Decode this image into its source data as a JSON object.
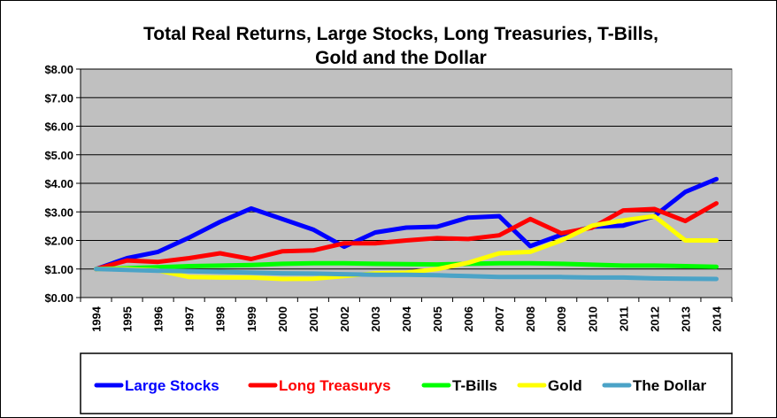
{
  "chart_data": {
    "type": "line",
    "title_line1": "Total Real Returns, Large Stocks, Long Treasuries, T-Bills,",
    "title_line2": "Gold and the Dollar",
    "ylim": [
      0,
      8
    ],
    "y_ticks": [
      "$0.00",
      "$1.00",
      "$2.00",
      "$3.00",
      "$4.00",
      "$5.00",
      "$6.00",
      "$7.00",
      "$8.00"
    ],
    "categories": [
      "1994",
      "1995",
      "1996",
      "1997",
      "1998",
      "1999",
      "2000",
      "2001",
      "2002",
      "2003",
      "2004",
      "2005",
      "2006",
      "2007",
      "2008",
      "2009",
      "2010",
      "2011",
      "2012",
      "2013",
      "2014"
    ],
    "grid": true,
    "plot_background": "#c0c0c0",
    "legend_position": "bottom",
    "series": [
      {
        "name": "Large Stocks",
        "color": "#0000ff",
        "label_color": "#0000ff",
        "values": [
          1.0,
          1.38,
          1.6,
          2.1,
          2.65,
          3.12,
          2.75,
          2.38,
          1.78,
          2.28,
          2.45,
          2.48,
          2.8,
          2.85,
          1.8,
          2.2,
          2.48,
          2.52,
          2.85,
          3.7,
          4.15
        ]
      },
      {
        "name": "Long Treasurys",
        "color": "#ff0000",
        "label_color": "#ff0000",
        "values": [
          1.0,
          1.3,
          1.25,
          1.38,
          1.55,
          1.35,
          1.62,
          1.65,
          1.9,
          1.9,
          2.0,
          2.08,
          2.05,
          2.18,
          2.75,
          2.25,
          2.45,
          3.05,
          3.1,
          2.68,
          3.3
        ]
      },
      {
        "name": "T-Bills",
        "color": "#00ff00",
        "label_color": "#000000",
        "values": [
          1.0,
          1.03,
          1.06,
          1.1,
          1.12,
          1.14,
          1.18,
          1.2,
          1.2,
          1.18,
          1.17,
          1.16,
          1.18,
          1.2,
          1.2,
          1.18,
          1.15,
          1.12,
          1.12,
          1.1,
          1.08
        ]
      },
      {
        "name": "Gold",
        "color": "#ffff00",
        "label_color": "#000000",
        "values": [
          1.0,
          1.0,
          0.95,
          0.72,
          0.7,
          0.7,
          0.65,
          0.66,
          0.75,
          0.85,
          0.87,
          1.0,
          1.22,
          1.55,
          1.6,
          2.0,
          2.52,
          2.7,
          2.85,
          2.0,
          2.0
        ]
      },
      {
        "name": "The Dollar",
        "color": "#4ba3c7",
        "label_color": "#000000",
        "values": [
          1.0,
          0.97,
          0.94,
          0.92,
          0.9,
          0.87,
          0.85,
          0.84,
          0.82,
          0.8,
          0.8,
          0.78,
          0.75,
          0.72,
          0.72,
          0.72,
          0.7,
          0.7,
          0.67,
          0.66,
          0.65
        ]
      }
    ]
  }
}
